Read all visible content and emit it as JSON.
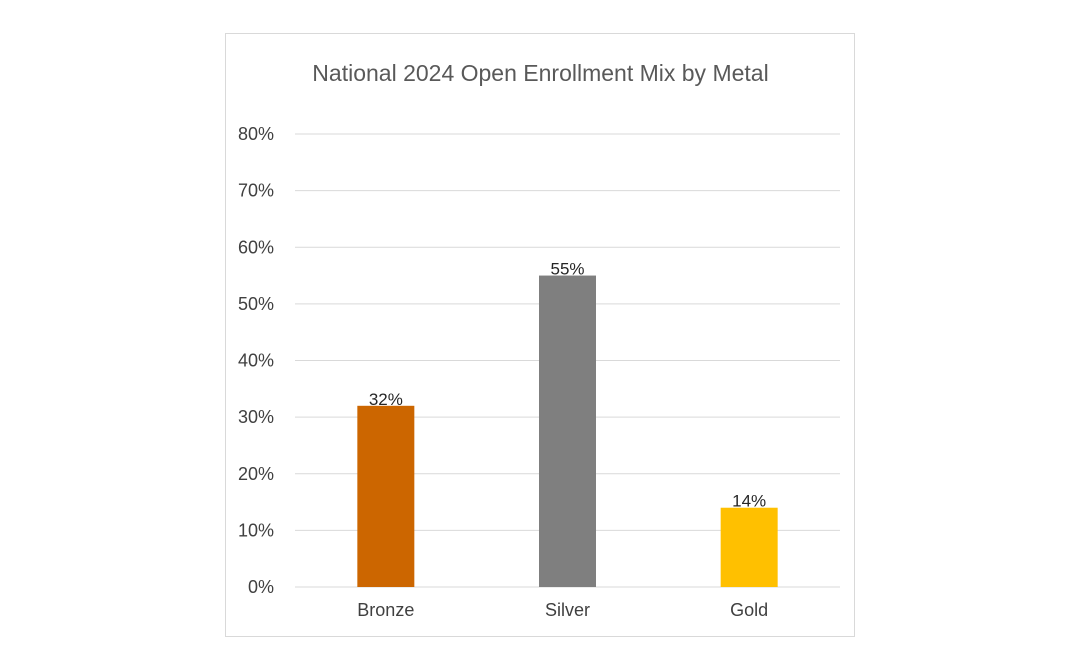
{
  "chart_data": {
    "type": "bar",
    "title": "National 2024 Open Enrollment Mix by Metal",
    "categories": [
      "Bronze",
      "Silver",
      "Gold"
    ],
    "values": [
      32,
      55,
      14
    ],
    "data_labels": [
      "32%",
      "55%",
      "14%"
    ],
    "colors": [
      "#cc6600",
      "#7f7f7f",
      "#ffc000"
    ],
    "ylim": [
      0,
      80
    ],
    "yticks": [
      0,
      10,
      20,
      30,
      40,
      50,
      60,
      70,
      80
    ],
    "ytick_labels": [
      "0%",
      "10%",
      "20%",
      "30%",
      "40%",
      "50%",
      "60%",
      "70%",
      "80%"
    ],
    "grid": true,
    "legend": "none",
    "xlabel": "",
    "ylabel": "",
    "gridline_color": "#d9d9d9"
  }
}
